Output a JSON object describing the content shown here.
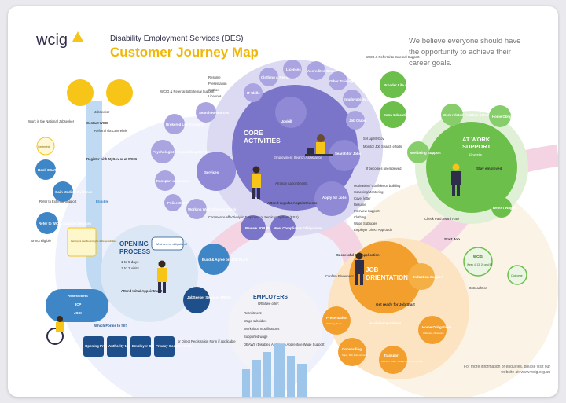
{
  "brand": {
    "logo_text": "wcig",
    "subtitle": "Disability Employment Services (DES)",
    "title": "Customer Journey Map"
  },
  "tagline": "We believe everyone should have the opportunity to achieve their career goals.",
  "footer": "For more information or enquiries, please visit our website at: www.wcig.org.au",
  "colors": {
    "purple": "#7b75c9",
    "green": "#6cbf4b",
    "orange": "#f29f2e",
    "blue": "#3f86c6",
    "pink": "#f4d3e3",
    "navy": "#1f4f8a",
    "yellow": "#f6c518"
  },
  "stages": {
    "core": {
      "title1": "CORE",
      "title2": "ACTIVITIES",
      "center": "Employment Search Assistance"
    },
    "work": {
      "title1": "AT WORK",
      "title2": "SUPPORT",
      "sub": "52 weeks"
    },
    "orientation": {
      "title1": "JOB",
      "title2": "ORIENTATION"
    },
    "opening": {
      "title1": "OPENING",
      "title2": "PROCESS",
      "l1": "1 to 5 days",
      "l2": "1 to 3 visits",
      "attend": "Attend Initial Appointment"
    },
    "employers": {
      "title": "EMPLOYERS",
      "sub": "What we offer:",
      "items": [
        "Recruitment",
        "Wage subsidies",
        "Workplace modifications",
        "Supported wage",
        "DEAWS (Disabled Australian Apprentice Wage Support)"
      ]
    }
  },
  "core_nodes": {
    "upskill": "Upskill",
    "services": "Services",
    "search": "Search for Jobs",
    "apply": "Apply for Jobs",
    "build": "Build & Agree on JOB PLAN",
    "review": "Review JOB PLAN",
    "meet": "Meet Compliance Obligations",
    "attend": "Attend regular Appointments",
    "arrange": "Arrange Appointments",
    "commence": "Commence effectively in Employment Services System (ESS)"
  },
  "upskill_items": [
    "IT Skills",
    "Clothing & Resources",
    "Licences",
    "Accredited Courses",
    "Other Training Courses",
    "Employability Skills",
    "Job Clubs"
  ],
  "services_items": [
    "Search Resources",
    "Brokered Life Supports",
    "Psychologist / Counselling Services",
    "Transport assistance",
    "Police Check",
    "Working With Children Check",
    "WCIG & Referral to External Support"
  ],
  "resume_items": [
    "Resume",
    "Presentation",
    "Clothes",
    "Licences"
  ],
  "search_items": [
    "Set up MyGov",
    "Monitor Job Search efforts"
  ],
  "apply_items": [
    "Motivation / Confidence building",
    "Coaching/Mentoring",
    "Cover letter",
    "Resume",
    "Interview Support",
    "Clothing",
    "Wage Subsidies",
    "Employer Direct Approach"
  ],
  "work_nodes": {
    "broader": "Broader Life supports",
    "extra": "Extra Education / Upskilling",
    "wellbeing": "Wellbeing Support",
    "problem": "Work related Problem Solving",
    "home": "Home Obligations",
    "report": "Report Wages",
    "stay": "Stay employed",
    "start": "Start Job",
    "check": "Check Paid Award Rate",
    "wcig_ref": "WCIG & Referral to External Support",
    "becomes": "If becomes unemployed"
  },
  "wcig_weeks": {
    "label": "WCIG",
    "weeks": "Week 4, 13, 26 and 52",
    "outcome": "Outcome",
    "extra": "Outreachtion"
  },
  "orientation_nodes": {
    "successful": "Successful Job Application",
    "confirm": "Confirm Placement",
    "induction": "Induction Support",
    "ready": "Get ready for Job Start",
    "presentation": "Presentation",
    "pres_sub": "Clothing, Items",
    "assistance": "Assistance options",
    "onboarding": "Onboarding",
    "onb_sub": "Super, IRD, Bank Account",
    "transport": "Transport",
    "trans_sub": "Own car / Public Transport route finding route",
    "home": "Home Obligations",
    "home_sub": "Childcare, Other care"
  },
  "opening_nodes": {
    "obligations": "What are my obligations?",
    "jobseeker": "JobSeeker Services MENU",
    "assessment": "Assessment",
    "icp": "ICP",
    "jsci": "JSCI",
    "forms": "Which Forms to fill?",
    "f1": "Opening Process Form",
    "f2": "Authority to Bank & Release",
    "f3": "Employer Disclosure Form",
    "f4": "Privacy Consent Form",
    "direct": "or Direct Registration Form if applicable",
    "handbook": "Participant Handbook Rights & Responsibilities"
  },
  "left_nodes": {
    "jobseeker": "Jobseeker",
    "contact": "Contact WCIG",
    "register": "Register with MyGov or at WCIG",
    "eligible": "Eligible",
    "book": "Book ESAT Assessment",
    "gain": "Gain Medical Evidence",
    "refer_ext": "Refer to External Support",
    "refer_support": "Refer to WCIG Support Services",
    "not_eligible": "or not eligible",
    "centrelink": "Centrelink",
    "referral": "Referral via Centrelink",
    "wcig_orig": "Work in the National Jobseeker"
  }
}
